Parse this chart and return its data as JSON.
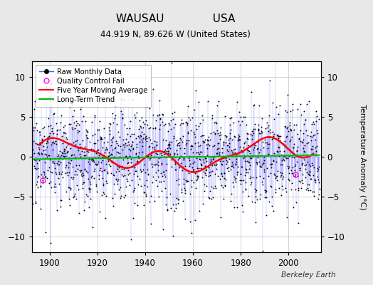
{
  "title_line1": "WAUSAU              USA",
  "title_line2": "44.919 N, 89.626 W (United States)",
  "ylabel": "Temperature Anomaly (°C)",
  "watermark": "Berkeley Earth",
  "year_start": 1893,
  "year_end": 2013,
  "ylim": [
    -12,
    12
  ],
  "yticks": [
    -10,
    -5,
    0,
    5,
    10
  ],
  "xticks": [
    1900,
    1920,
    1940,
    1960,
    1980,
    2000
  ],
  "bg_color": "#e8e8e8",
  "plot_bg_color": "#ffffff",
  "raw_line_color": "#5555ff",
  "raw_dot_color": "#000000",
  "moving_avg_color": "#ff0000",
  "trend_color": "#00bb00",
  "qc_fail_color": "#ff00ff",
  "grid_color": "#cccccc",
  "noise_std": 3.2,
  "moving_avg_amplitude": 1.5,
  "moving_avg_period": 25,
  "seed": 17
}
